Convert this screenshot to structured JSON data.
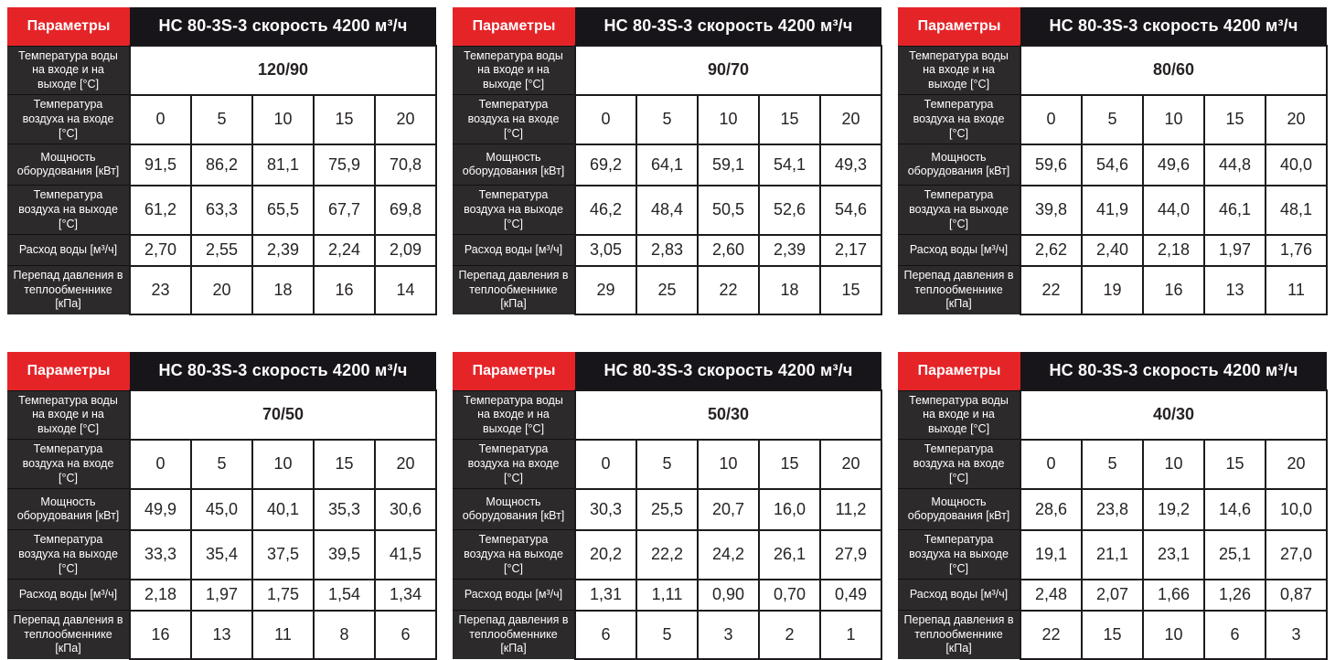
{
  "labels": {
    "params": "Параметры",
    "title": "НС 80-3S-3 скорость 4200 м³/ч",
    "water": "Температура воды на входе и на выходе [°C]",
    "air_in": "Температура воздуха на входе [°C]",
    "power": "Мощность оборудования [кВт]",
    "air_out": "Температура воздуха на выходе [°C]",
    "flow": "Расход воды [м³/ч]",
    "pressure": "Перепад давления в теплообменнике [кПа]"
  },
  "colors": {
    "accent_red": "#e52428",
    "header_black": "#18151a",
    "label_gray": "#2d2a2c",
    "cell_border": "#1d1a1e",
    "cell_text": "#272324",
    "label_text": "#ffffff"
  },
  "tables": [
    {
      "water_regime": "120/90",
      "air_in": [
        "0",
        "5",
        "10",
        "15",
        "20"
      ],
      "power": [
        "91,5",
        "86,2",
        "81,1",
        "75,9",
        "70,8"
      ],
      "air_out": [
        "61,2",
        "63,3",
        "65,5",
        "67,7",
        "69,8"
      ],
      "flow": [
        "2,70",
        "2,55",
        "2,39",
        "2,24",
        "2,09"
      ],
      "pressure": [
        "23",
        "20",
        "18",
        "16",
        "14"
      ]
    },
    {
      "water_regime": "90/70",
      "air_in": [
        "0",
        "5",
        "10",
        "15",
        "20"
      ],
      "power": [
        "69,2",
        "64,1",
        "59,1",
        "54,1",
        "49,3"
      ],
      "air_out": [
        "46,2",
        "48,4",
        "50,5",
        "52,6",
        "54,6"
      ],
      "flow": [
        "3,05",
        "2,83",
        "2,60",
        "2,39",
        "2,17"
      ],
      "pressure": [
        "29",
        "25",
        "22",
        "18",
        "15"
      ]
    },
    {
      "water_regime": "80/60",
      "air_in": [
        "0",
        "5",
        "10",
        "15",
        "20"
      ],
      "power": [
        "59,6",
        "54,6",
        "49,6",
        "44,8",
        "40,0"
      ],
      "air_out": [
        "39,8",
        "41,9",
        "44,0",
        "46,1",
        "48,1"
      ],
      "flow": [
        "2,62",
        "2,40",
        "2,18",
        "1,97",
        "1,76"
      ],
      "pressure": [
        "22",
        "19",
        "16",
        "13",
        "11"
      ]
    },
    {
      "water_regime": "70/50",
      "air_in": [
        "0",
        "5",
        "10",
        "15",
        "20"
      ],
      "power": [
        "49,9",
        "45,0",
        "40,1",
        "35,3",
        "30,6"
      ],
      "air_out": [
        "33,3",
        "35,4",
        "37,5",
        "39,5",
        "41,5"
      ],
      "flow": [
        "2,18",
        "1,97",
        "1,75",
        "1,54",
        "1,34"
      ],
      "pressure": [
        "16",
        "13",
        "11",
        "8",
        "6"
      ]
    },
    {
      "water_regime": "50/30",
      "air_in": [
        "0",
        "5",
        "10",
        "15",
        "20"
      ],
      "power": [
        "30,3",
        "25,5",
        "20,7",
        "16,0",
        "11,2"
      ],
      "air_out": [
        "20,2",
        "22,2",
        "24,2",
        "26,1",
        "27,9"
      ],
      "flow": [
        "1,31",
        "1,11",
        "0,90",
        "0,70",
        "0,49"
      ],
      "pressure": [
        "6",
        "5",
        "3",
        "2",
        "1"
      ]
    },
    {
      "water_regime": "40/30",
      "air_in": [
        "0",
        "5",
        "10",
        "15",
        "20"
      ],
      "power": [
        "28,6",
        "23,8",
        "19,2",
        "14,6",
        "10,0"
      ],
      "air_out": [
        "19,1",
        "21,1",
        "23,1",
        "25,1",
        "27,0"
      ],
      "flow": [
        "2,48",
        "2,07",
        "1,66",
        "1,26",
        "0,87"
      ],
      "pressure": [
        "22",
        "15",
        "10",
        "6",
        "3"
      ]
    }
  ]
}
